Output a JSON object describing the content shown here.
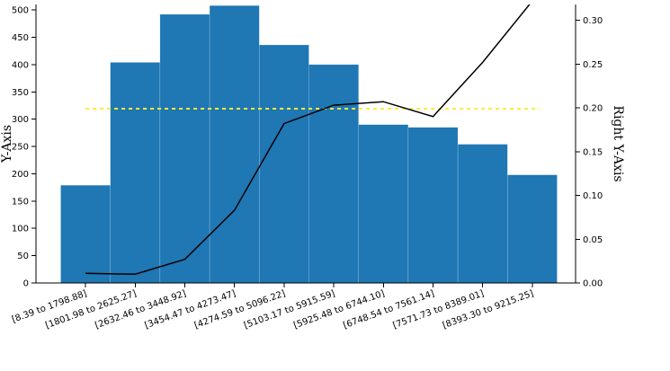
{
  "chart_data": {
    "type": "bar",
    "categories": [
      "[8.39 to 1798.88]",
      "[1801.98 to 2625.27]",
      "[2632.46 to 3448.92]",
      "[3454.47 to 4273.47]",
      "[4274.59 to 5096.22]",
      "[5103.17 to 5915.59]",
      "[5925.48 to 6744.10]",
      "[6748.54 to 7561.14]",
      "[7571.73 to 8389.01]",
      "[8393.30 to 9215.25]"
    ],
    "series": [
      {
        "type": "bar",
        "axis": "left",
        "color": "#1f77b4",
        "values": [
          179,
          404,
          492,
          508,
          436,
          400,
          290,
          285,
          254,
          198
        ]
      },
      {
        "type": "line",
        "axis": "right",
        "color": "#000000",
        "values": [
          0.011,
          0.01,
          0.027,
          0.083,
          0.182,
          0.203,
          0.207,
          0.19,
          0.252,
          0.322
        ]
      }
    ],
    "reference_line": {
      "axis": "right",
      "value": 0.199,
      "color": "#ffeb3b",
      "style": "dashed"
    },
    "ylabel": "Y-Axis",
    "y2label": "Right Y-Axis",
    "ylim": [
      0,
      510
    ],
    "y2lim": [
      0,
      0.318
    ],
    "yticks": [
      "0",
      "50",
      "100",
      "150",
      "200",
      "250",
      "300",
      "350",
      "400",
      "450",
      "500"
    ],
    "y2ticks": [
      "0.00",
      "0.05",
      "0.10",
      "0.15",
      "0.20",
      "0.25",
      "0.30"
    ],
    "grid": false,
    "colors": {
      "bar": "#1f77b4",
      "line": "#000000",
      "reference": "#ffeb3b"
    }
  }
}
